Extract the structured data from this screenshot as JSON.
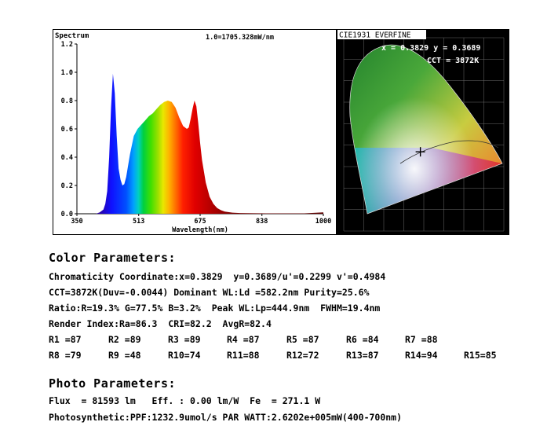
{
  "chart_data": [
    {
      "type": "area",
      "title": "Spectrum",
      "annotation": "1.0=1705.328mW/nm",
      "xlabel": "Wavelength(nm)",
      "ylabel": "",
      "xlim": [
        350,
        1000
      ],
      "ylim": [
        0,
        1.2
      ],
      "xticks": [
        350,
        513,
        675,
        838,
        1000
      ],
      "yticks": [
        0.0,
        0.2,
        0.4,
        0.6,
        0.8,
        1.0,
        1.2
      ],
      "xtick_labels": [
        "350",
        "513",
        "675",
        "838",
        "1000"
      ],
      "ytick_labels": [
        "0.0",
        "0.2",
        "0.4",
        "0.6",
        "0.8",
        "1.0",
        "1.2"
      ],
      "fill": "wavelength-colored spectrum",
      "x": [
        350,
        380,
        400,
        410,
        420,
        425,
        430,
        435,
        440,
        445,
        450,
        455,
        460,
        465,
        470,
        475,
        480,
        490,
        500,
        510,
        520,
        530,
        540,
        550,
        560,
        570,
        580,
        590,
        600,
        610,
        620,
        630,
        640,
        645,
        650,
        655,
        660,
        665,
        670,
        675,
        680,
        690,
        700,
        710,
        720,
        730,
        740,
        760,
        780,
        800,
        850,
        900,
        950,
        1000
      ],
      "y": [
        0.0,
        0.0,
        0.0,
        0.01,
        0.03,
        0.07,
        0.16,
        0.4,
        0.75,
        0.99,
        0.85,
        0.55,
        0.32,
        0.24,
        0.2,
        0.21,
        0.26,
        0.42,
        0.55,
        0.6,
        0.63,
        0.66,
        0.69,
        0.71,
        0.74,
        0.77,
        0.79,
        0.8,
        0.79,
        0.75,
        0.68,
        0.62,
        0.6,
        0.61,
        0.67,
        0.74,
        0.8,
        0.76,
        0.64,
        0.5,
        0.38,
        0.22,
        0.12,
        0.07,
        0.04,
        0.025,
        0.015,
        0.008,
        0.005,
        0.004,
        0.003,
        0.003,
        0.003,
        0.01
      ]
    },
    {
      "type": "scatter",
      "title": "CIE1931 EVERFINE",
      "point_label": "x = 0.3829 y = 0.3689",
      "cct_label": "CCT = 3872K",
      "x": [
        0.3829
      ],
      "y": [
        0.3689
      ],
      "xlim": [
        0,
        0.8
      ],
      "ylim": [
        0,
        0.9
      ],
      "background": "#000000"
    }
  ],
  "color_params": {
    "heading": "Color Parameters:",
    "line1": "Chromaticity Coordinate:x=0.3829  y=0.3689/u'=0.2299 v'=0.4984",
    "line2": "CCT=3872K(Duv=-0.0044) Dominant WL:Ld =582.2nm Purity=25.6%",
    "line3": "Ratio:R=19.3% G=77.5% B=3.2%  Peak WL:Lp=444.9nm  FWHM=19.4nm",
    "line4": "Render Index:Ra=86.3  CRI=82.2  AvgR=82.4",
    "r_values": [
      "R1 =87",
      "R2 =89",
      "R3 =89",
      "R4 =87",
      "R5 =87",
      "R6 =84",
      "R7 =88",
      "R8 =79",
      "R9 =48",
      "R10=74",
      "R11=88",
      "R12=72",
      "R13=87",
      "R14=94",
      "R15=85"
    ]
  },
  "photo_params": {
    "heading": "Photo Parameters:",
    "line1": "Flux  = 81593 lm   Eff. : 0.00 lm/W  Fe  = 271.1 W",
    "line2": "Photosynthetic:PPF:1232.9umol/s PAR WATT:2.6202e+005mW(400-700nm)"
  }
}
